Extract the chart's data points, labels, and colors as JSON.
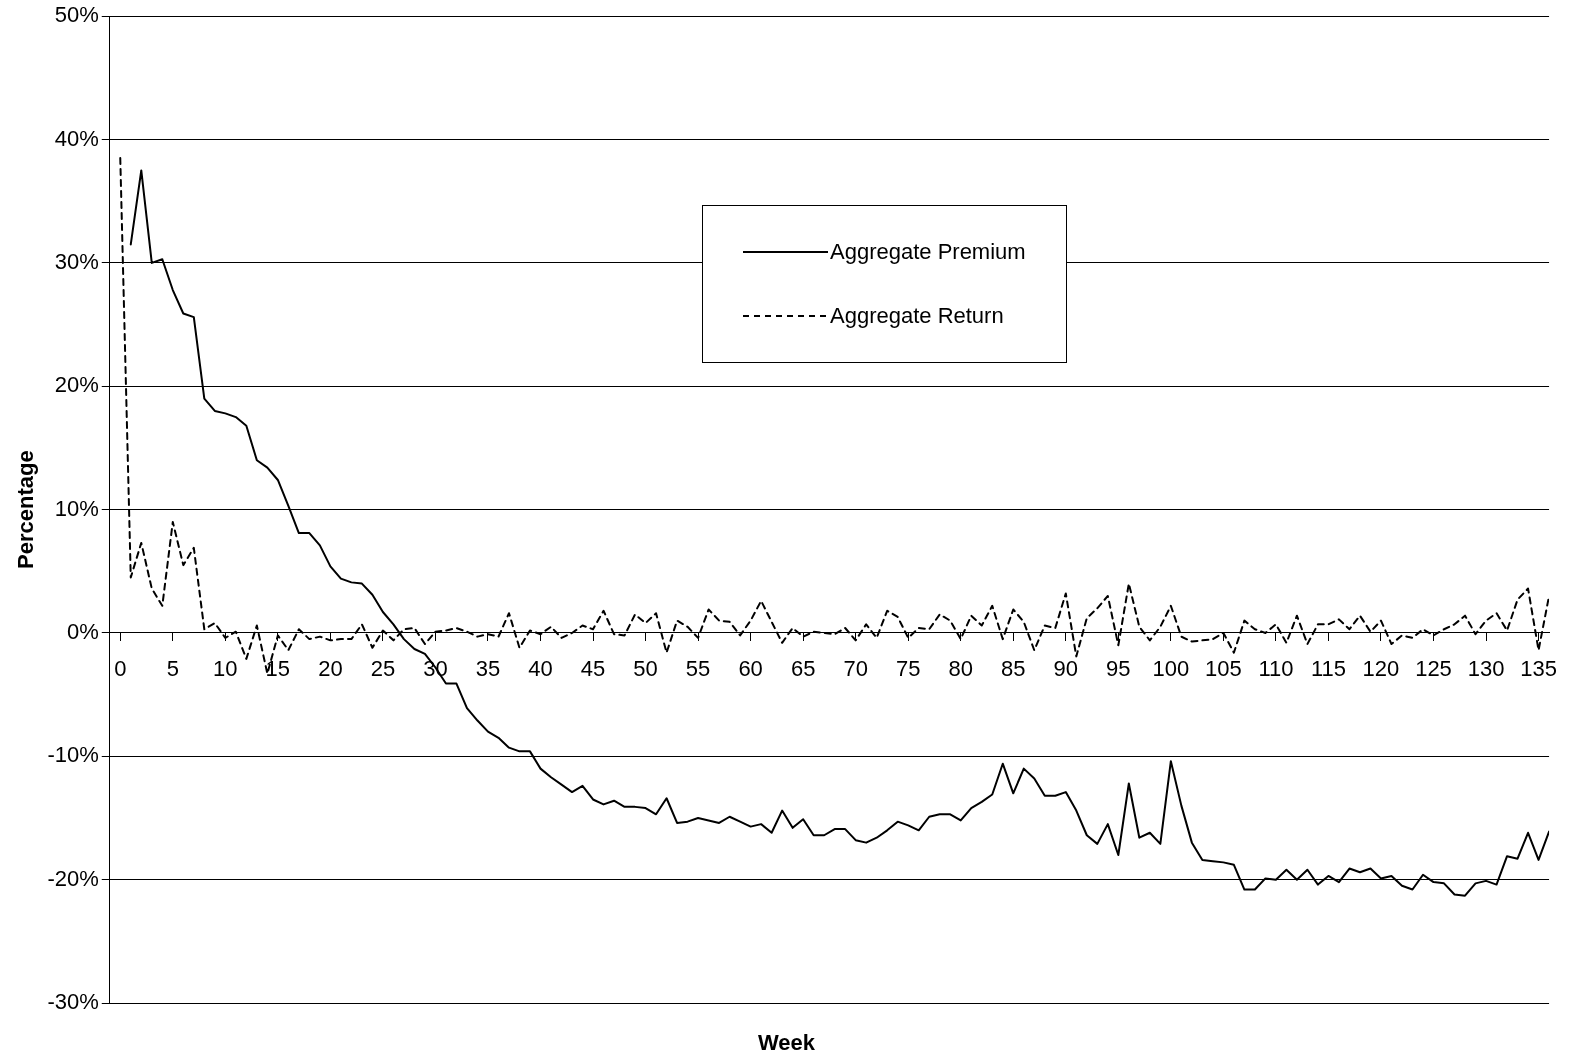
{
  "chart_data": {
    "type": "line",
    "xlabel": "Week",
    "ylabel": "Percentage",
    "x": [
      0,
      1,
      2,
      3,
      4,
      5,
      6,
      7,
      8,
      9,
      10,
      11,
      12,
      13,
      14,
      15,
      16,
      17,
      18,
      19,
      20,
      21,
      22,
      23,
      24,
      25,
      26,
      27,
      28,
      29,
      30,
      31,
      32,
      33,
      34,
      35,
      36,
      37,
      38,
      39,
      40,
      41,
      42,
      43,
      44,
      45,
      46,
      47,
      48,
      49,
      50,
      51,
      52,
      53,
      54,
      55,
      56,
      57,
      58,
      59,
      60,
      61,
      62,
      63,
      64,
      65,
      66,
      67,
      68,
      69,
      70,
      71,
      72,
      73,
      74,
      75,
      76,
      77,
      78,
      79,
      80,
      81,
      82,
      83,
      84,
      85,
      86,
      87,
      88,
      89,
      90,
      91,
      92,
      93,
      94,
      95,
      96,
      97,
      98,
      99,
      100,
      101,
      102,
      103,
      104,
      105,
      106,
      107,
      108,
      109,
      110,
      111,
      112,
      113,
      114,
      115,
      116,
      117,
      118,
      119,
      120,
      121,
      122,
      123,
      124,
      125,
      126,
      127,
      128,
      129,
      130,
      131,
      132,
      133,
      134,
      135,
      136
    ],
    "series": [
      {
        "name": "Aggregate Premium",
        "color": "#000000",
        "line_style": "solid",
        "values": [
          null,
          31.5,
          37.5,
          30,
          30.3,
          27.8,
          25.9,
          25.6,
          19,
          18,
          17.8,
          17.5,
          16.8,
          14,
          13.4,
          12.4,
          10.3,
          8.1,
          8.1,
          7.1,
          5.4,
          4.4,
          4.1,
          4,
          3.1,
          1.7,
          0.7,
          -0.5,
          -1.3,
          -1.7,
          -2.8,
          -4.1,
          -4.1,
          -6.1,
          -7.1,
          -8,
          -8.5,
          -9.3,
          -9.6,
          -9.6,
          -11,
          -11.7,
          -12.3,
          -12.9,
          -12.4,
          -13.5,
          -13.9,
          -13.6,
          -14.1,
          -14.1,
          -14.2,
          -14.7,
          -13.4,
          -15.4,
          -15.3,
          -15,
          -15.2,
          -15.4,
          -14.9,
          -15.3,
          -15.7,
          -15.5,
          -16.2,
          -14.4,
          -15.8,
          -15.1,
          -16.4,
          -16.4,
          -15.9,
          -15.9,
          -16.8,
          -17,
          -16.6,
          -16,
          -15.3,
          -15.6,
          -16,
          -14.9,
          -14.7,
          -14.7,
          -15.2,
          -14.2,
          -13.7,
          -13.1,
          -10.6,
          -13,
          -11,
          -11.8,
          -13.2,
          -13.2,
          -12.9,
          -14.4,
          -16.4,
          -17.1,
          -15.5,
          -18,
          -12.2,
          -16.6,
          -16.2,
          -17.1,
          -10.4,
          -14,
          -17,
          -18.4,
          -18.5,
          -18.6,
          -18.8,
          -20.8,
          -20.8,
          -19.9,
          -20,
          -19.2,
          -20,
          -19.2,
          -20.4,
          -19.7,
          -20.2,
          -19.1,
          -19.4,
          -19.1,
          -19.9,
          -19.7,
          -20.5,
          -20.8,
          -19.6,
          -20.2,
          -20.3,
          -21.2,
          -21.3,
          -20.3,
          -20.1,
          -20.4,
          -18.1,
          -18.3,
          -16.2,
          -18.4,
          -16.1
        ]
      },
      {
        "name": "Aggregate Return",
        "color": "#000000",
        "line_style": "dashed",
        "values": [
          38.5,
          4.5,
          7.3,
          3.6,
          2.2,
          9,
          5.5,
          6.9,
          0.3,
          0.8,
          -0.4,
          0.1,
          -2.1,
          0.6,
          -3.3,
          -0.2,
          -1.4,
          0.3,
          -0.5,
          -0.3,
          -0.6,
          -0.5,
          -0.5,
          0.7,
          -1.2,
          0.2,
          -0.6,
          0.3,
          0.4,
          -0.9,
          0.1,
          0.2,
          0.4,
          0.1,
          -0.3,
          -0.1,
          -0.3,
          1.6,
          -1.2,
          0.2,
          -0.1,
          0.5,
          -0.4,
          0,
          0.6,
          0.3,
          1.8,
          -0.1,
          -0.2,
          1.5,
          0.8,
          1.6,
          -1.6,
          1,
          0.5,
          -0.4,
          1.9,
          1,
          0.9,
          -0.2,
          1,
          2.6,
          0.9,
          -0.8,
          0.4,
          -0.3,
          0.1,
          0,
          -0.1,
          0.4,
          -0.6,
          0.7,
          -0.4,
          1.8,
          1.3,
          -0.4,
          0.4,
          0.3,
          1.5,
          1,
          -0.5,
          1.4,
          0.6,
          2.2,
          -0.5,
          1.9,
          0.9,
          -1.4,
          0.6,
          0.4,
          3.2,
          -1.9,
          1.2,
          2,
          3,
          -1,
          4,
          0.5,
          -0.6,
          0.5,
          2.2,
          -0.3,
          -0.7,
          -0.6,
          -0.5,
          0,
          -1.6,
          1,
          0.3,
          0,
          0.7,
          -0.8,
          1.4,
          -0.9,
          0.7,
          0.7,
          1.1,
          0.3,
          1.4,
          0.1,
          1,
          -0.9,
          -0.2,
          -0.4,
          0.3,
          -0.2,
          0.3,
          0.7,
          1.4,
          -0.1,
          1,
          1.6,
          0.2,
          2.7,
          3.6,
          -1.4,
          3
        ]
      }
    ],
    "xlim": [
      -1,
      136
    ],
    "xticks": [
      0,
      5,
      10,
      15,
      20,
      25,
      30,
      35,
      40,
      45,
      50,
      55,
      60,
      65,
      70,
      75,
      80,
      85,
      90,
      95,
      100,
      105,
      110,
      115,
      120,
      125,
      130,
      135
    ],
    "ylim": [
      -30,
      50
    ],
    "yticks": [
      {
        "value": -30,
        "label": "-30%"
      },
      {
        "value": -20,
        "label": "-20%"
      },
      {
        "value": -10,
        "label": "-10%"
      },
      {
        "value": 0,
        "label": "0%"
      },
      {
        "value": 10,
        "label": "10%"
      },
      {
        "value": 20,
        "label": "20%"
      },
      {
        "value": 30,
        "label": "30%"
      },
      {
        "value": 40,
        "label": "40%"
      },
      {
        "value": 50,
        "label": "50%"
      }
    ],
    "grid": "y",
    "legend": "top right",
    "marker": "none"
  }
}
